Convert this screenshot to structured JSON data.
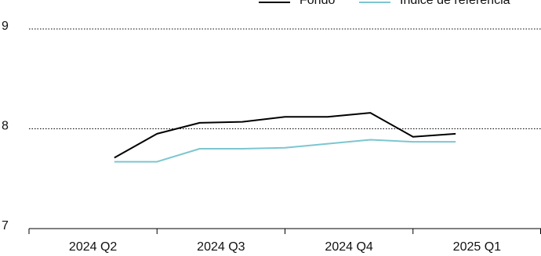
{
  "chart_data": {
    "type": "line",
    "categories": [
      null,
      null,
      null,
      null,
      null,
      null,
      null,
      null,
      null
    ],
    "x_group_labels": [
      "2024 Q2",
      "2024 Q3",
      "2024 Q4",
      "2025 Q1"
    ],
    "series": [
      {
        "name": "Fondo",
        "color": "#000000",
        "values": [
          7.71,
          7.95,
          8.06,
          8.07,
          8.12,
          8.12,
          8.16,
          7.92,
          7.95
        ]
      },
      {
        "name": "Índice de referencia",
        "color": "#7cc6d0",
        "values": [
          7.67,
          7.67,
          7.8,
          7.8,
          7.81,
          7.85,
          7.89,
          7.87,
          7.87
        ]
      }
    ],
    "ylim": [
      7,
      9
    ],
    "yticks": [
      7,
      8,
      9
    ],
    "grid": true
  }
}
